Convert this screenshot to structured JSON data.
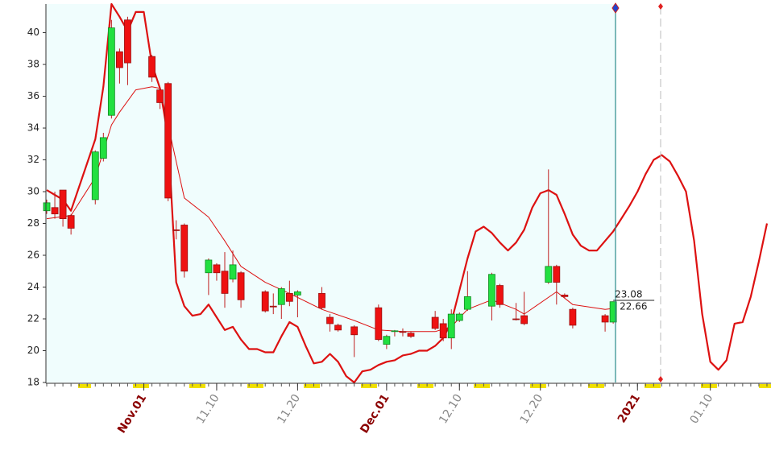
{
  "chart_data": {
    "type": "candlestick",
    "xlim": [
      18.9,
      108.5
    ],
    "ylim": [
      18,
      41.8
    ],
    "yticks": [
      18,
      20,
      22,
      24,
      26,
      28,
      30,
      32,
      34,
      36,
      38,
      40
    ],
    "xticks": [
      {
        "value": 31,
        "label": "Nov.01"
      },
      {
        "value": 40,
        "label": "11.10"
      },
      {
        "value": 50,
        "label": "11.20"
      },
      {
        "value": 61,
        "label": "Dec.01"
      },
      {
        "value": 70,
        "label": "12.10"
      },
      {
        "value": 80,
        "label": "12.20"
      },
      {
        "value": 92,
        "label": "2021"
      },
      {
        "value": 101,
        "label": "01.10"
      }
    ],
    "up_color": "#22e040",
    "down_color": "#ee1111",
    "line_color": "#dd1111",
    "x": [
      19,
      20,
      21,
      22,
      25,
      26,
      27,
      28,
      29,
      32,
      33,
      34,
      35,
      36,
      39,
      40,
      41,
      42,
      43,
      46,
      47,
      48,
      49,
      50,
      53,
      54,
      55,
      57,
      60,
      61,
      62,
      63,
      64,
      67,
      68,
      69,
      70,
      71,
      74,
      75,
      77,
      78,
      81,
      82,
      83,
      84,
      88,
      89
    ],
    "open": [
      28.8,
      29.0,
      30.1,
      28.5,
      29.5,
      32.1,
      34.8,
      38.8,
      40.8,
      38.5,
      36.4,
      36.8,
      27.6,
      27.9,
      24.9,
      25.4,
      25.0,
      24.5,
      24.9,
      23.7,
      22.8,
      22.9,
      23.6,
      23.5,
      23.6,
      22.1,
      21.6,
      21.5,
      22.7,
      20.4,
      21.2,
      21.2,
      21.1,
      22.1,
      21.7,
      20.8,
      21.9,
      22.6,
      22.8,
      24.1,
      22.0,
      22.2,
      24.3,
      25.3,
      23.5,
      22.6,
      22.2,
      21.8
    ],
    "high": [
      29.5,
      30.0,
      30.1,
      28.6,
      32.6,
      33.7,
      40.8,
      39.0,
      41.0,
      38.6,
      36.5,
      36.9,
      28.2,
      28.0,
      25.8,
      25.5,
      26.2,
      26.3,
      25.0,
      23.8,
      23.6,
      24.0,
      24.4,
      23.8,
      24.0,
      22.3,
      21.7,
      21.6,
      22.9,
      21.0,
      21.3,
      21.4,
      21.2,
      22.5,
      22.0,
      22.6,
      22.4,
      25.0,
      24.9,
      24.2,
      23.0,
      23.7,
      31.4,
      25.4,
      23.6,
      22.7,
      22.3,
      23.1
    ],
    "low": [
      28.6,
      28.3,
      27.8,
      27.3,
      29.2,
      31.9,
      34.6,
      36.8,
      36.7,
      36.9,
      35.2,
      29.4,
      27.0,
      24.6,
      23.5,
      24.4,
      22.7,
      24.3,
      22.7,
      22.4,
      22.3,
      22.0,
      22.8,
      22.1,
      22.6,
      21.2,
      21.2,
      19.6,
      20.6,
      20.1,
      20.9,
      20.9,
      20.8,
      21.3,
      20.6,
      20.1,
      21.8,
      22.5,
      21.9,
      22.7,
      21.9,
      21.6,
      24.2,
      22.9,
      23.3,
      21.4,
      21.2,
      21.7
    ],
    "close": [
      29.3,
      28.6,
      28.3,
      27.7,
      32.5,
      33.4,
      40.3,
      37.8,
      38.1,
      37.2,
      35.6,
      29.6,
      27.6,
      25.0,
      25.7,
      24.9,
      23.6,
      25.4,
      23.2,
      22.5,
      22.8,
      23.9,
      23.1,
      23.7,
      22.7,
      21.7,
      21.3,
      21.0,
      20.7,
      20.9,
      21.25,
      21.2,
      20.9,
      21.4,
      20.8,
      22.3,
      22.3,
      23.4,
      24.8,
      22.9,
      22.0,
      21.7,
      25.3,
      24.3,
      23.4,
      21.6,
      21.8,
      23.08
    ],
    "ma_x": [
      19,
      22,
      25,
      27,
      28,
      30,
      32,
      33,
      35,
      36,
      39,
      41,
      43,
      46,
      49,
      53,
      57,
      60,
      63,
      67,
      69,
      71,
      74,
      77,
      78,
      82,
      84,
      88,
      89
    ],
    "ma_values": [
      28.3,
      28.5,
      30.9,
      34.2,
      35.0,
      36.4,
      36.6,
      36.5,
      31.9,
      29.6,
      28.4,
      26.9,
      25.3,
      24.3,
      23.6,
      22.6,
      21.9,
      21.3,
      21.2,
      21.2,
      21.5,
      22.6,
      23.2,
      22.6,
      22.3,
      23.7,
      22.9,
      22.6,
      22.66
    ],
    "osc_x": [
      19,
      20,
      21,
      22,
      25,
      26,
      27,
      28,
      29,
      30,
      31,
      32,
      33,
      34,
      35,
      36,
      37,
      38,
      39,
      40,
      41,
      42,
      43,
      44,
      45,
      46,
      47,
      48,
      49,
      50,
      51,
      52,
      53,
      54,
      55,
      56,
      57,
      58,
      59,
      60,
      61,
      62,
      63,
      64,
      65,
      66,
      67,
      68,
      69,
      70,
      71,
      72,
      73,
      74,
      75,
      76,
      77,
      78,
      79,
      80,
      81,
      82,
      83,
      84,
      85,
      86,
      87,
      88,
      89,
      90,
      91,
      92,
      93,
      94,
      95,
      96,
      97,
      98,
      99,
      100,
      101,
      102,
      103,
      104,
      105,
      106,
      107,
      108
    ],
    "osc_values": [
      30.1,
      29.8,
      29.5,
      28.8,
      33.3,
      36.6,
      41.8,
      41.0,
      40.1,
      41.3,
      41.3,
      38.0,
      36.5,
      33.4,
      24.3,
      22.8,
      22.2,
      22.3,
      22.9,
      22.1,
      21.3,
      21.5,
      20.7,
      20.1,
      20.1,
      19.9,
      19.9,
      20.9,
      21.8,
      21.5,
      20.3,
      19.2,
      19.3,
      19.8,
      19.3,
      18.4,
      18.0,
      18.7,
      18.8,
      19.1,
      19.3,
      19.4,
      19.7,
      19.8,
      20.0,
      20.0,
      20.3,
      20.8,
      21.8,
      23.8,
      25.8,
      27.5,
      27.8,
      27.4,
      26.8,
      26.3,
      26.8,
      27.6,
      29.0,
      29.9,
      30.1,
      29.8,
      28.6,
      27.3,
      26.6,
      26.3,
      26.3,
      26.9,
      27.5,
      28.3,
      29.1,
      30.0,
      31.1,
      32.0,
      32.3,
      31.9,
      31.0,
      30.0,
      26.9,
      22.3,
      19.3,
      18.8,
      19.4,
      21.7,
      21.8,
      23.4,
      25.6,
      28.0
    ]
  }
}
